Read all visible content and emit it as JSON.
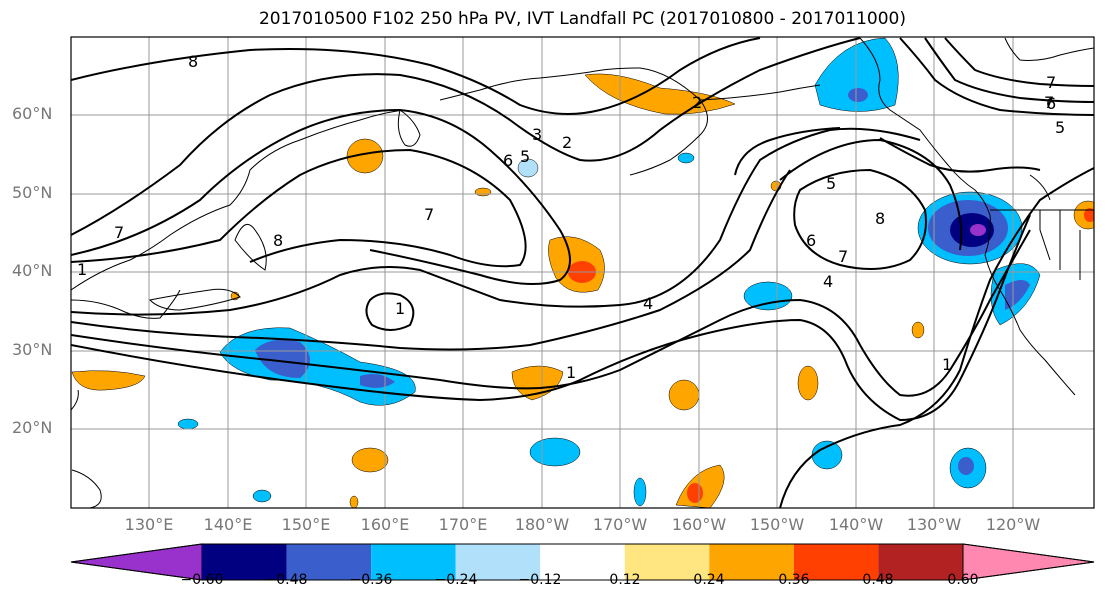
{
  "title": "2017010500 F102 250 hPa PV, IVT Landfall PC (2017010800 - 2017011000)",
  "lat_labels": [
    "60°N",
    "50°N",
    "40°N",
    "30°N",
    "20°N"
  ],
  "lon_labels": [
    "130°E",
    "140°E",
    "150°E",
    "160°E",
    "170°E",
    "180°W",
    "170°W",
    "160°W",
    "150°W",
    "140°W",
    "130°W",
    "120°W"
  ],
  "colorbar": {
    "ticks": [
      "−0.60",
      "−0.48",
      "−0.36",
      "−0.24",
      "−0.12",
      "0.12",
      "0.24",
      "0.36",
      "0.48",
      "0.60"
    ],
    "colors": [
      "#9932cc",
      "#000080",
      "#3a5fcd",
      "#00bfff",
      "#b0e0fa",
      "#ffffff",
      "#ffe680",
      "#ffa500",
      "#ff4000",
      "#b22222",
      "#ff88b0"
    ]
  },
  "contour_labels": [
    "8",
    "7",
    "1",
    "3",
    "2",
    "6",
    "5",
    "7",
    "8",
    "6",
    "7",
    "4",
    "1",
    "1",
    "4",
    "5",
    "8",
    "7",
    "6",
    "5",
    "1",
    "7",
    "2"
  ],
  "colors": {
    "map_line": "#000000",
    "grid": "#999999",
    "contour": "#000000"
  }
}
